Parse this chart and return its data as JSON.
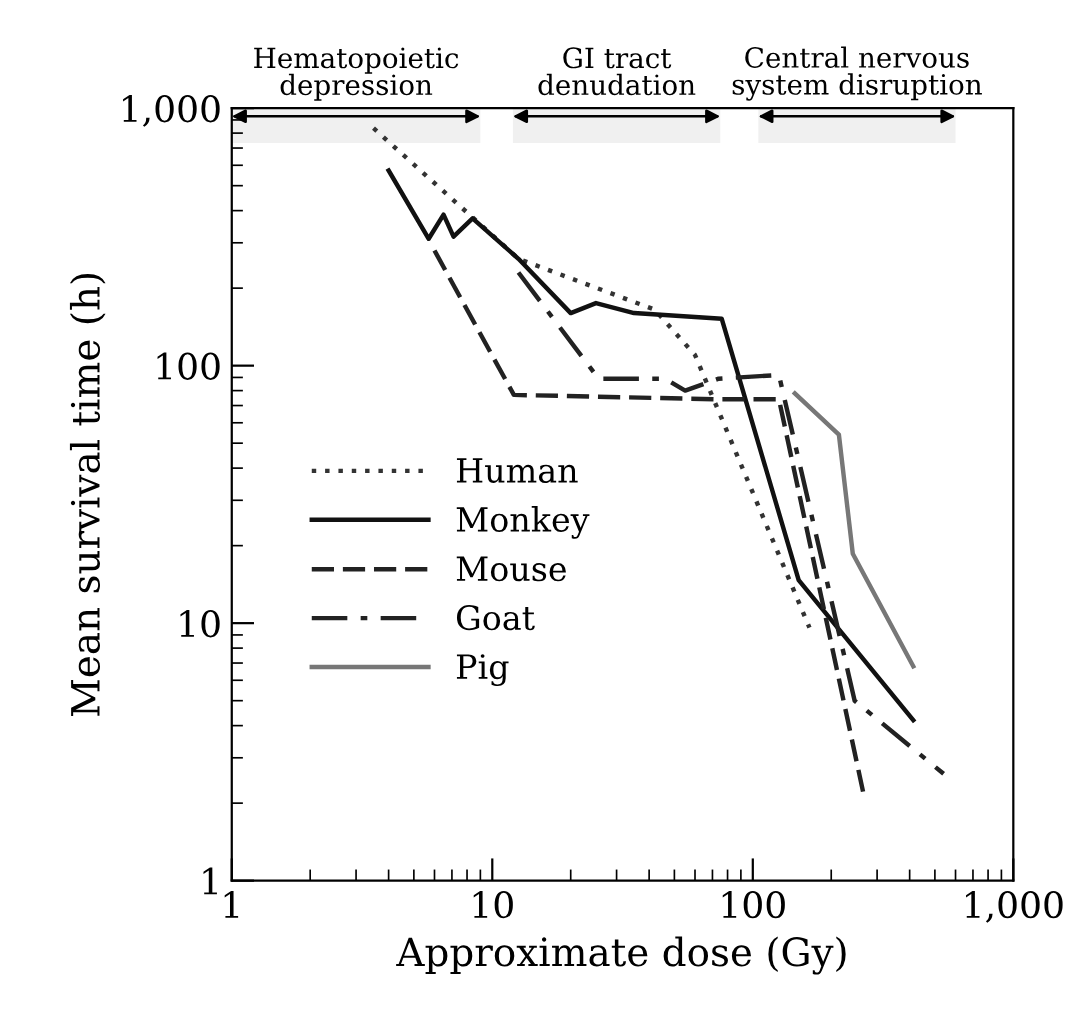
{
  "chart_data": {
    "type": "line",
    "log": "xy",
    "xlabel": "Approximate dose (Gy)",
    "ylabel": "Mean survival time (h)",
    "xlim": [
      1,
      1000
    ],
    "ylim": [
      1,
      1000
    ],
    "xticks": [
      1,
      10,
      100,
      {
        "value": 1000,
        "label": "1,000"
      }
    ],
    "yticks": [
      1,
      10,
      100,
      {
        "value": 1000,
        "label": "1,000"
      }
    ],
    "grid": false,
    "legend": "center left",
    "marker": "none",
    "bands": [
      {
        "axis": "x",
        "from": 1,
        "to": 9,
        "label": "Hematopoietic\ndepression"
      },
      {
        "axis": "x",
        "from": 12,
        "to": 75,
        "label": "GI tract\ndenudation"
      },
      {
        "axis": "x",
        "from": 105,
        "to": 600,
        "label": "Central nervous\nsystem disruption"
      }
    ],
    "series": [
      {
        "name": "Human",
        "color": "#333333",
        "line_style": "dotted",
        "x": [
          3.5,
          12.6,
          42,
          60,
          165
        ],
        "values": [
          836,
          260,
          165,
          110,
          9.6
        ]
      },
      {
        "name": "Monkey",
        "color": "#111111",
        "line_style": "solid",
        "x": [
          4,
          5.7,
          6.5,
          7.1,
          8.4,
          12.6,
          20,
          25,
          35,
          76,
          150,
          413
        ],
        "values": [
          573,
          311,
          386,
          317,
          373,
          260,
          160,
          175,
          160,
          152,
          14.7,
          4.2
        ]
      },
      {
        "name": "Mouse",
        "color": "#222222",
        "line_style": "dashed",
        "x": [
          6,
          12.1,
          74,
          126,
          268
        ],
        "values": [
          280,
          77,
          74,
          74,
          2.1
        ]
      },
      {
        "name": "Goat",
        "color": "#222222",
        "line_style": "dashdot",
        "x": [
          12.6,
          25.6,
          46,
          55,
          74,
          126,
          246,
          540
        ],
        "values": [
          230,
          89,
          89,
          80,
          89,
          92,
          5,
          2.6
        ]
      },
      {
        "name": "Pig",
        "color": "#777777",
        "line_style": "solid",
        "x": [
          145,
          214,
          242,
          413
        ],
        "values": [
          78,
          54,
          18.6,
          6.8
        ]
      }
    ]
  }
}
